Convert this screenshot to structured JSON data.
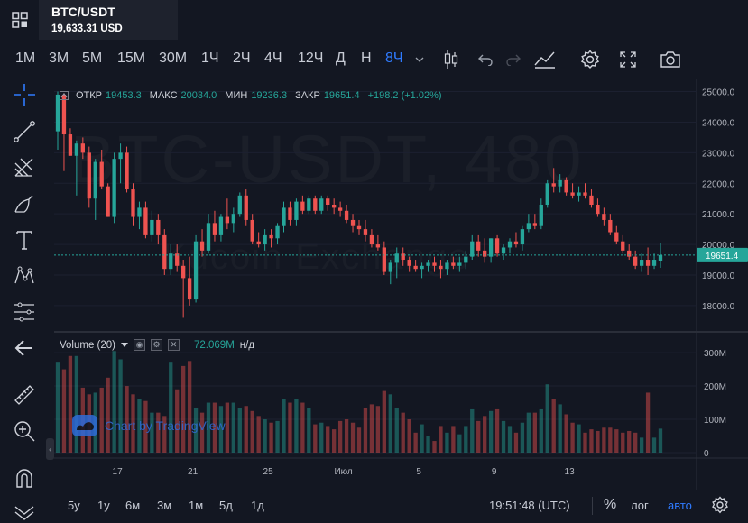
{
  "header": {
    "symbol": "BTC/USDT",
    "price": "19,633.31 USD"
  },
  "toolbar": {
    "timeframes": [
      "1М",
      "3М",
      "5М",
      "15М",
      "30М",
      "1Ч",
      "2Ч",
      "4Ч",
      "12Ч",
      "Д",
      "Н",
      "8Ч"
    ],
    "active_timeframe": "8Ч",
    "icons": [
      "chevron-down-icon",
      "candles-icon",
      "undo-icon",
      "redo-icon",
      "indicators-icon",
      "settings-icon",
      "fullscreen-icon",
      "camera-icon"
    ]
  },
  "left_tools": [
    "crosshair-icon",
    "trendline-icon",
    "fib-icon",
    "brush-icon",
    "text-icon",
    "pattern-icon",
    "measure-ruler-lines-icon",
    "back-arrow-icon",
    "ruler-icon",
    "zoom-in-icon",
    "magnet-icon",
    "hide-drawings-icon"
  ],
  "ohlc": {
    "open_label": "ОТКР",
    "open": "19453.3",
    "high_label": "МАКС",
    "high": "20034.0",
    "low_label": "МИН",
    "low": "19236.3",
    "close_label": "ЗАКР",
    "close": "19651.4",
    "change": "+198.2 (+1.02%)"
  },
  "watermark": {
    "line1": "BTC-USDT, 480",
    "line2": "Kucoin Exchange"
  },
  "price_axis": {
    "labels": [
      "25000.0",
      "24000.0",
      "23000.0",
      "22000.0",
      "21000.0",
      "20000.0",
      "19000.0",
      "18000.0"
    ],
    "current": "19651.4"
  },
  "volume": {
    "legend": "Volume (20)",
    "value": "72.069M",
    "unit": "н/д",
    "axis_labels": [
      "300M",
      "200M",
      "100M",
      "0"
    ]
  },
  "time_axis": [
    "17",
    "21",
    "25",
    "Июл",
    "5",
    "9",
    "13"
  ],
  "branding": "Chart by TradingView",
  "bottom": {
    "ranges": [
      "5y",
      "1y",
      "6м",
      "3м",
      "1м",
      "5д",
      "1д"
    ],
    "clock": "19:51:48 (UTC)",
    "percent": "%",
    "log": "лог",
    "auto": "авто"
  },
  "colors": {
    "up": "#26a69a",
    "down": "#ef5350",
    "accent": "#2f7bff",
    "background": "#131722"
  },
  "chart_data": {
    "type": "candlestick",
    "symbol": "BTC-USDT",
    "interval": "8h",
    "price_range": [
      17200,
      25400
    ],
    "volume_range": [
      0,
      330
    ],
    "candles": [
      {
        "o": 23700,
        "h": 25000,
        "l": 23100,
        "c": 24900,
        "v": 270
      },
      {
        "o": 24900,
        "h": 24950,
        "l": 22400,
        "c": 23600,
        "v": 250
      },
      {
        "o": 23600,
        "h": 23800,
        "l": 22900,
        "c": 22900,
        "v": 290
      },
      {
        "o": 22900,
        "h": 23400,
        "l": 21600,
        "c": 23300,
        "v": 290
      },
      {
        "o": 23300,
        "h": 23500,
        "l": 22800,
        "c": 23000,
        "v": 195
      },
      {
        "o": 23000,
        "h": 23200,
        "l": 21200,
        "c": 21500,
        "v": 175
      },
      {
        "o": 21500,
        "h": 22800,
        "l": 20800,
        "c": 22700,
        "v": 180
      },
      {
        "o": 22700,
        "h": 23100,
        "l": 21800,
        "c": 21900,
        "v": 195
      },
      {
        "o": 21900,
        "h": 22000,
        "l": 20900,
        "c": 20900,
        "v": 225
      },
      {
        "o": 20900,
        "h": 23000,
        "l": 20700,
        "c": 22800,
        "v": 305
      },
      {
        "o": 22800,
        "h": 23300,
        "l": 22000,
        "c": 23000,
        "v": 280
      },
      {
        "o": 23000,
        "h": 23200,
        "l": 21700,
        "c": 21800,
        "v": 200
      },
      {
        "o": 21800,
        "h": 22000,
        "l": 20600,
        "c": 20900,
        "v": 175
      },
      {
        "o": 20900,
        "h": 21400,
        "l": 20500,
        "c": 21200,
        "v": 160
      },
      {
        "o": 21200,
        "h": 21400,
        "l": 20200,
        "c": 20300,
        "v": 155
      },
      {
        "o": 20300,
        "h": 21100,
        "l": 20100,
        "c": 20800,
        "v": 120
      },
      {
        "o": 20800,
        "h": 21000,
        "l": 20000,
        "c": 20300,
        "v": 120
      },
      {
        "o": 20300,
        "h": 20500,
        "l": 19000,
        "c": 19200,
        "v": 110
      },
      {
        "o": 19200,
        "h": 20000,
        "l": 19000,
        "c": 19700,
        "v": 270
      },
      {
        "o": 19700,
        "h": 20000,
        "l": 19100,
        "c": 19300,
        "v": 190
      },
      {
        "o": 19300,
        "h": 19500,
        "l": 17600,
        "c": 18900,
        "v": 260
      },
      {
        "o": 18900,
        "h": 19600,
        "l": 18000,
        "c": 18200,
        "v": 275
      },
      {
        "o": 18200,
        "h": 20300,
        "l": 18100,
        "c": 20100,
        "v": 135
      },
      {
        "o": 20100,
        "h": 20500,
        "l": 19600,
        "c": 19800,
        "v": 120
      },
      {
        "o": 19800,
        "h": 21000,
        "l": 19700,
        "c": 20700,
        "v": 150
      },
      {
        "o": 20700,
        "h": 21100,
        "l": 20100,
        "c": 20300,
        "v": 150
      },
      {
        "o": 20300,
        "h": 21000,
        "l": 20100,
        "c": 20900,
        "v": 140
      },
      {
        "o": 20900,
        "h": 21500,
        "l": 20500,
        "c": 20700,
        "v": 150
      },
      {
        "o": 20700,
        "h": 21200,
        "l": 20400,
        "c": 21000,
        "v": 150
      },
      {
        "o": 21000,
        "h": 21700,
        "l": 20900,
        "c": 21600,
        "v": 135
      },
      {
        "o": 21600,
        "h": 21800,
        "l": 20600,
        "c": 20800,
        "v": 140
      },
      {
        "o": 20800,
        "h": 21000,
        "l": 20000,
        "c": 20100,
        "v": 125
      },
      {
        "o": 20100,
        "h": 20400,
        "l": 19900,
        "c": 20000,
        "v": 110
      },
      {
        "o": 20000,
        "h": 20500,
        "l": 19800,
        "c": 20300,
        "v": 100
      },
      {
        "o": 20300,
        "h": 20500,
        "l": 19900,
        "c": 20200,
        "v": 90
      },
      {
        "o": 20200,
        "h": 20700,
        "l": 20000,
        "c": 20600,
        "v": 95
      },
      {
        "o": 20600,
        "h": 21400,
        "l": 20400,
        "c": 21200,
        "v": 160
      },
      {
        "o": 21200,
        "h": 21400,
        "l": 20600,
        "c": 20800,
        "v": 150
      },
      {
        "o": 20800,
        "h": 21500,
        "l": 20600,
        "c": 21400,
        "v": 160
      },
      {
        "o": 21400,
        "h": 21600,
        "l": 21000,
        "c": 21100,
        "v": 150
      },
      {
        "o": 21100,
        "h": 21600,
        "l": 21000,
        "c": 21500,
        "v": 135
      },
      {
        "o": 21500,
        "h": 21600,
        "l": 21000,
        "c": 21100,
        "v": 85
      },
      {
        "o": 21100,
        "h": 21600,
        "l": 21000,
        "c": 21500,
        "v": 90
      },
      {
        "o": 21500,
        "h": 21600,
        "l": 21100,
        "c": 21300,
        "v": 80
      },
      {
        "o": 21300,
        "h": 21500,
        "l": 21000,
        "c": 21200,
        "v": 70
      },
      {
        "o": 21200,
        "h": 21400,
        "l": 20900,
        "c": 21100,
        "v": 95
      },
      {
        "o": 21100,
        "h": 21300,
        "l": 20700,
        "c": 20800,
        "v": 100
      },
      {
        "o": 20800,
        "h": 21000,
        "l": 20400,
        "c": 20600,
        "v": 90
      },
      {
        "o": 20600,
        "h": 20800,
        "l": 20300,
        "c": 20500,
        "v": 75
      },
      {
        "o": 20500,
        "h": 20800,
        "l": 20100,
        "c": 20300,
        "v": 135
      },
      {
        "o": 20300,
        "h": 20500,
        "l": 19900,
        "c": 20000,
        "v": 145
      },
      {
        "o": 20000,
        "h": 20300,
        "l": 19800,
        "c": 19900,
        "v": 140
      },
      {
        "o": 19900,
        "h": 20100,
        "l": 19000,
        "c": 19100,
        "v": 185
      },
      {
        "o": 19100,
        "h": 19500,
        "l": 18700,
        "c": 19400,
        "v": 175
      },
      {
        "o": 19400,
        "h": 19900,
        "l": 18900,
        "c": 19700,
        "v": 135
      },
      {
        "o": 19700,
        "h": 19900,
        "l": 19300,
        "c": 19500,
        "v": 120
      },
      {
        "o": 19500,
        "h": 19600,
        "l": 19100,
        "c": 19300,
        "v": 100
      },
      {
        "o": 19300,
        "h": 19500,
        "l": 19100,
        "c": 19200,
        "v": 60
      },
      {
        "o": 19200,
        "h": 19400,
        "l": 18900,
        "c": 19300,
        "v": 85
      },
      {
        "o": 19300,
        "h": 19500,
        "l": 19100,
        "c": 19400,
        "v": 50
      },
      {
        "o": 19400,
        "h": 19600,
        "l": 19100,
        "c": 19300,
        "v": 35
      },
      {
        "o": 19300,
        "h": 19500,
        "l": 18900,
        "c": 19200,
        "v": 80
      },
      {
        "o": 19200,
        "h": 19500,
        "l": 19000,
        "c": 19400,
        "v": 60
      },
      {
        "o": 19400,
        "h": 19600,
        "l": 19200,
        "c": 19300,
        "v": 80
      },
      {
        "o": 19300,
        "h": 19600,
        "l": 19100,
        "c": 19400,
        "v": 55
      },
      {
        "o": 19400,
        "h": 19800,
        "l": 19200,
        "c": 19600,
        "v": 80
      },
      {
        "o": 19600,
        "h": 20300,
        "l": 19500,
        "c": 20100,
        "v": 130
      },
      {
        "o": 20100,
        "h": 20300,
        "l": 19600,
        "c": 19800,
        "v": 95
      },
      {
        "o": 19800,
        "h": 20200,
        "l": 19400,
        "c": 19600,
        "v": 110
      },
      {
        "o": 19600,
        "h": 20200,
        "l": 19400,
        "c": 20200,
        "v": 125
      },
      {
        "o": 20200,
        "h": 20300,
        "l": 19600,
        "c": 19700,
        "v": 130
      },
      {
        "o": 19700,
        "h": 20000,
        "l": 19500,
        "c": 19900,
        "v": 95
      },
      {
        "o": 19900,
        "h": 20200,
        "l": 19700,
        "c": 20100,
        "v": 80
      },
      {
        "o": 20100,
        "h": 20400,
        "l": 19900,
        "c": 20000,
        "v": 60
      },
      {
        "o": 20000,
        "h": 20600,
        "l": 19800,
        "c": 20500,
        "v": 90
      },
      {
        "o": 20500,
        "h": 21000,
        "l": 20400,
        "c": 20700,
        "v": 120
      },
      {
        "o": 20700,
        "h": 21000,
        "l": 20500,
        "c": 20600,
        "v": 120
      },
      {
        "o": 20600,
        "h": 21500,
        "l": 20500,
        "c": 21300,
        "v": 130
      },
      {
        "o": 21300,
        "h": 22100,
        "l": 21200,
        "c": 22000,
        "v": 205
      },
      {
        "o": 22000,
        "h": 22500,
        "l": 21700,
        "c": 21900,
        "v": 160
      },
      {
        "o": 21900,
        "h": 22300,
        "l": 21700,
        "c": 22100,
        "v": 145
      },
      {
        "o": 22100,
        "h": 22200,
        "l": 21600,
        "c": 21700,
        "v": 115
      },
      {
        "o": 21700,
        "h": 22000,
        "l": 21500,
        "c": 21600,
        "v": 90
      },
      {
        "o": 21600,
        "h": 21900,
        "l": 21400,
        "c": 21700,
        "v": 85
      },
      {
        "o": 21700,
        "h": 22000,
        "l": 21500,
        "c": 21600,
        "v": 60
      },
      {
        "o": 21600,
        "h": 21800,
        "l": 21200,
        "c": 21300,
        "v": 70
      },
      {
        "o": 21300,
        "h": 21500,
        "l": 20900,
        "c": 21000,
        "v": 65
      },
      {
        "o": 21000,
        "h": 21200,
        "l": 20600,
        "c": 20800,
        "v": 75
      },
      {
        "o": 20800,
        "h": 21000,
        "l": 20300,
        "c": 20400,
        "v": 75
      },
      {
        "o": 20400,
        "h": 20600,
        "l": 20000,
        "c": 20100,
        "v": 70
      },
      {
        "o": 20100,
        "h": 20300,
        "l": 19700,
        "c": 19800,
        "v": 60
      },
      {
        "o": 19800,
        "h": 20000,
        "l": 19500,
        "c": 19600,
        "v": 65
      },
      {
        "o": 19600,
        "h": 19800,
        "l": 19200,
        "c": 19300,
        "v": 60
      },
      {
        "o": 19300,
        "h": 19700,
        "l": 19100,
        "c": 19500,
        "v": 45
      },
      {
        "o": 19500,
        "h": 19900,
        "l": 19000,
        "c": 19300,
        "v": 180
      },
      {
        "o": 19300,
        "h": 19700,
        "l": 19200,
        "c": 19500,
        "v": 45
      },
      {
        "o": 19453.3,
        "h": 20034,
        "l": 19236.3,
        "c": 19651.4,
        "v": 72.069
      }
    ]
  }
}
